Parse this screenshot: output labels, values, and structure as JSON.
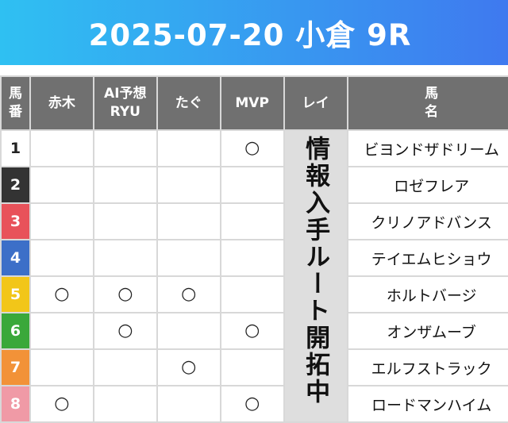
{
  "header": {
    "title": "2025-07-20 小倉 9R"
  },
  "columns": {
    "num": [
      "馬",
      "番"
    ],
    "akagi": "赤木",
    "ai": [
      "AI予想",
      "RYU"
    ],
    "tagu": "たぐ",
    "mvp": "MVP",
    "rei": "レイ",
    "horse": [
      "馬",
      "名"
    ]
  },
  "rei_note": "情報入手ルート開拓中",
  "mark_symbol": "○",
  "rows": [
    {
      "num": "1",
      "color": "#ffffff",
      "akagi": "",
      "ai": "",
      "tagu": "",
      "mvp": "○",
      "horse": "ビヨンドザドリーム"
    },
    {
      "num": "2",
      "color": "#333333",
      "akagi": "",
      "ai": "",
      "tagu": "",
      "mvp": "",
      "horse": "ロゼフレア"
    },
    {
      "num": "3",
      "color": "#e8525a",
      "akagi": "",
      "ai": "",
      "tagu": "",
      "mvp": "",
      "horse": "クリノアドバンス"
    },
    {
      "num": "4",
      "color": "#3c6fc8",
      "akagi": "",
      "ai": "",
      "tagu": "",
      "mvp": "",
      "horse": "テイエムヒショウ"
    },
    {
      "num": "5",
      "color": "#f2c619",
      "akagi": "○",
      "ai": "○",
      "tagu": "○",
      "mvp": "",
      "horse": "ホルトバージ"
    },
    {
      "num": "6",
      "color": "#3aa83a",
      "akagi": "",
      "ai": "○",
      "tagu": "",
      "mvp": "○",
      "horse": "オンザムーブ"
    },
    {
      "num": "7",
      "color": "#f29238",
      "akagi": "",
      "ai": "",
      "tagu": "○",
      "mvp": "",
      "horse": "エルフストラック"
    },
    {
      "num": "8",
      "color": "#f09aa6",
      "akagi": "○",
      "ai": "",
      "tagu": "",
      "mvp": "○",
      "horse": "ロードマンハイム"
    }
  ]
}
